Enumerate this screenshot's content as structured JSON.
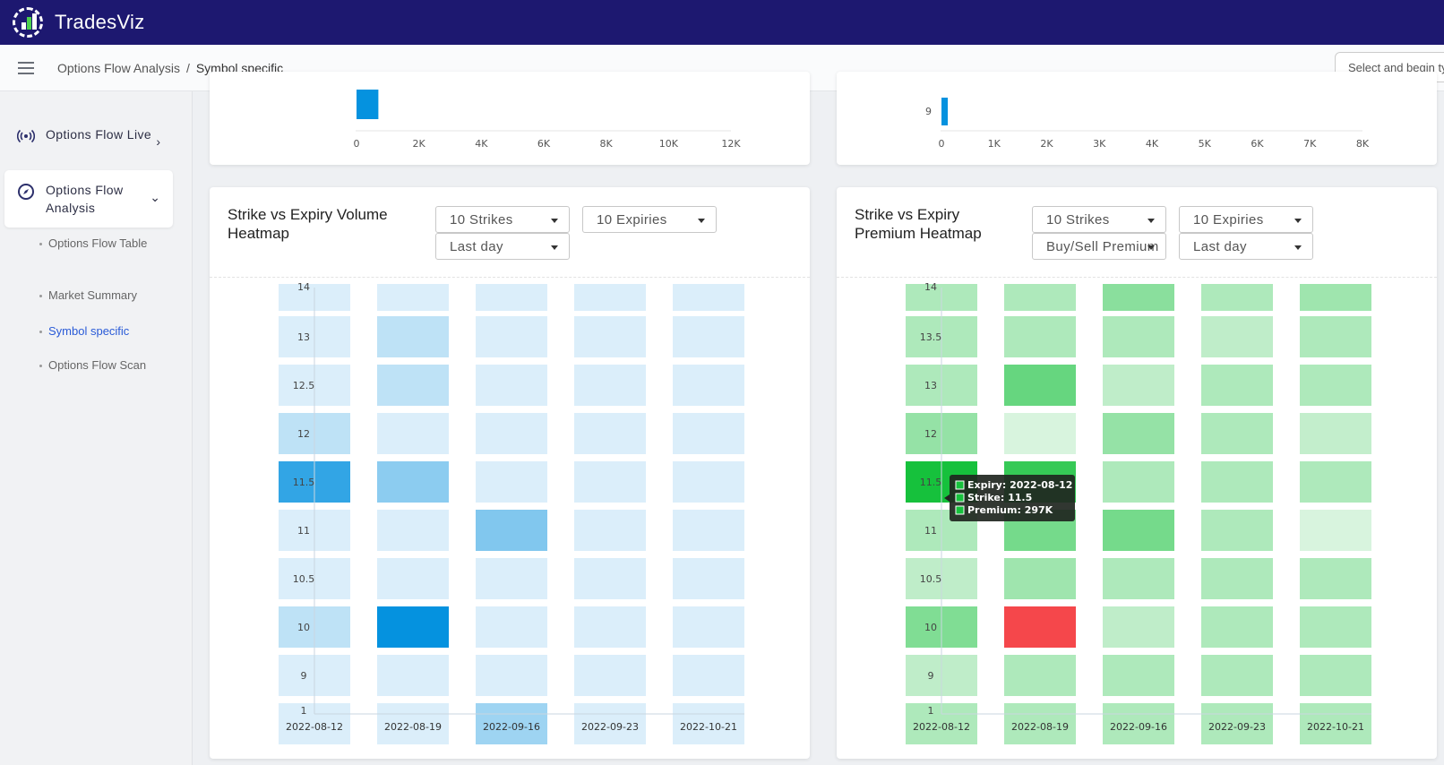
{
  "app": {
    "name": "TradesViz"
  },
  "breadcrumb": {
    "parent": "Options Flow Analysis",
    "separator": "/",
    "current": "Symbol specific"
  },
  "search": {
    "placeholder": "Select and begin typing"
  },
  "sidebar": {
    "items": [
      {
        "label": "Options Flow Live",
        "icon": "broadcast-icon"
      },
      {
        "label": "Options Flow Analysis",
        "icon": "compass-icon"
      }
    ],
    "sub_items": [
      "Options Flow Table",
      "Market Summary",
      "Symbol specific",
      "Options Flow Scan"
    ],
    "active_sub": "Symbol specific"
  },
  "top_left_chart": {
    "ticks": [
      "0",
      "2K",
      "4K",
      "6K",
      "8K",
      "10K",
      "12K"
    ],
    "max": 12000,
    "bar_value": 700
  },
  "top_right_chart": {
    "ticks": [
      "0",
      "1K",
      "2K",
      "3K",
      "4K",
      "5K",
      "6K",
      "7K",
      "8K"
    ],
    "max": 8000,
    "bar_label": "9",
    "bar_value": 120
  },
  "volume_heatmap": {
    "title": "Strike vs Expiry Volume Heatmap",
    "controls": {
      "strikes": "10 Strikes",
      "expiries": "10 Expiries",
      "period": "Last day"
    },
    "chart_data": {
      "type": "heatmap",
      "title": "Strike vs Expiry Volume Heatmap",
      "x": [
        "2022-08-12",
        "2022-08-19",
        "2022-09-16",
        "2022-09-23",
        "2022-10-21"
      ],
      "y": [
        "14",
        "13",
        "12.5",
        "12",
        "11.5",
        "11",
        "10.5",
        "10",
        "9",
        "1"
      ],
      "values": [
        [
          0.05,
          0.05,
          0.05,
          0.05,
          0.05
        ],
        [
          0.05,
          0.18,
          0.05,
          0.05,
          0.05
        ],
        [
          0.05,
          0.18,
          0.05,
          0.05,
          0.05
        ],
        [
          0.18,
          0.05,
          0.05,
          0.05,
          0.05
        ],
        [
          0.8,
          0.4,
          0.05,
          0.05,
          0.05
        ],
        [
          0.05,
          0.05,
          0.45,
          0.05,
          0.05
        ],
        [
          0.05,
          0.05,
          0.05,
          0.05,
          0.05
        ],
        [
          0.18,
          1.0,
          0.05,
          0.05,
          0.05
        ],
        [
          0.05,
          0.05,
          0.05,
          0.05,
          0.05
        ],
        [
          0.05,
          0.05,
          0.32,
          0.05,
          0.05
        ]
      ]
    }
  },
  "premium_heatmap": {
    "title": "Strike vs Expiry Premium Heatmap",
    "controls": {
      "strikes": "10 Strikes",
      "expiries": "10 Expiries",
      "side": "Buy/Sell Premium",
      "period": "Last day"
    },
    "tooltip": {
      "expiry": "Expiry: 2022-08-12",
      "strike": "Strike: 11.5",
      "premium": "Premium: 297K"
    },
    "chart_data": {
      "type": "heatmap",
      "title": "Strike vs Expiry Premium Heatmap",
      "x": [
        "2022-08-12",
        "2022-08-19",
        "2022-09-16",
        "2022-09-23",
        "2022-10-21"
      ],
      "y": [
        "14",
        "13.5",
        "13",
        "12",
        "11.5",
        "11",
        "10.5",
        "10",
        "9",
        "1"
      ],
      "values": [
        [
          0.28,
          0.28,
          0.45,
          0.28,
          0.35
        ],
        [
          0.28,
          0.28,
          0.28,
          0.2,
          0.28
        ],
        [
          0.28,
          0.62,
          0.2,
          0.28,
          0.28
        ],
        [
          0.4,
          0.08,
          0.4,
          0.28,
          0.18
        ],
        [
          1.0,
          0.85,
          0.28,
          0.28,
          0.28
        ],
        [
          0.28,
          0.55,
          0.55,
          0.28,
          0.08
        ],
        [
          0.2,
          0.35,
          0.28,
          0.28,
          0.28
        ],
        [
          0.5,
          -1.0,
          0.2,
          0.28,
          0.28
        ],
        [
          0.2,
          0.28,
          0.28,
          0.28,
          0.28
        ],
        [
          0.28,
          0.28,
          0.28,
          0.28,
          0.28
        ]
      ]
    }
  },
  "colors": {
    "topbar": "#1d1870",
    "volume": "#0592df",
    "premium": "#16c13c",
    "negative": "#f5474b"
  }
}
